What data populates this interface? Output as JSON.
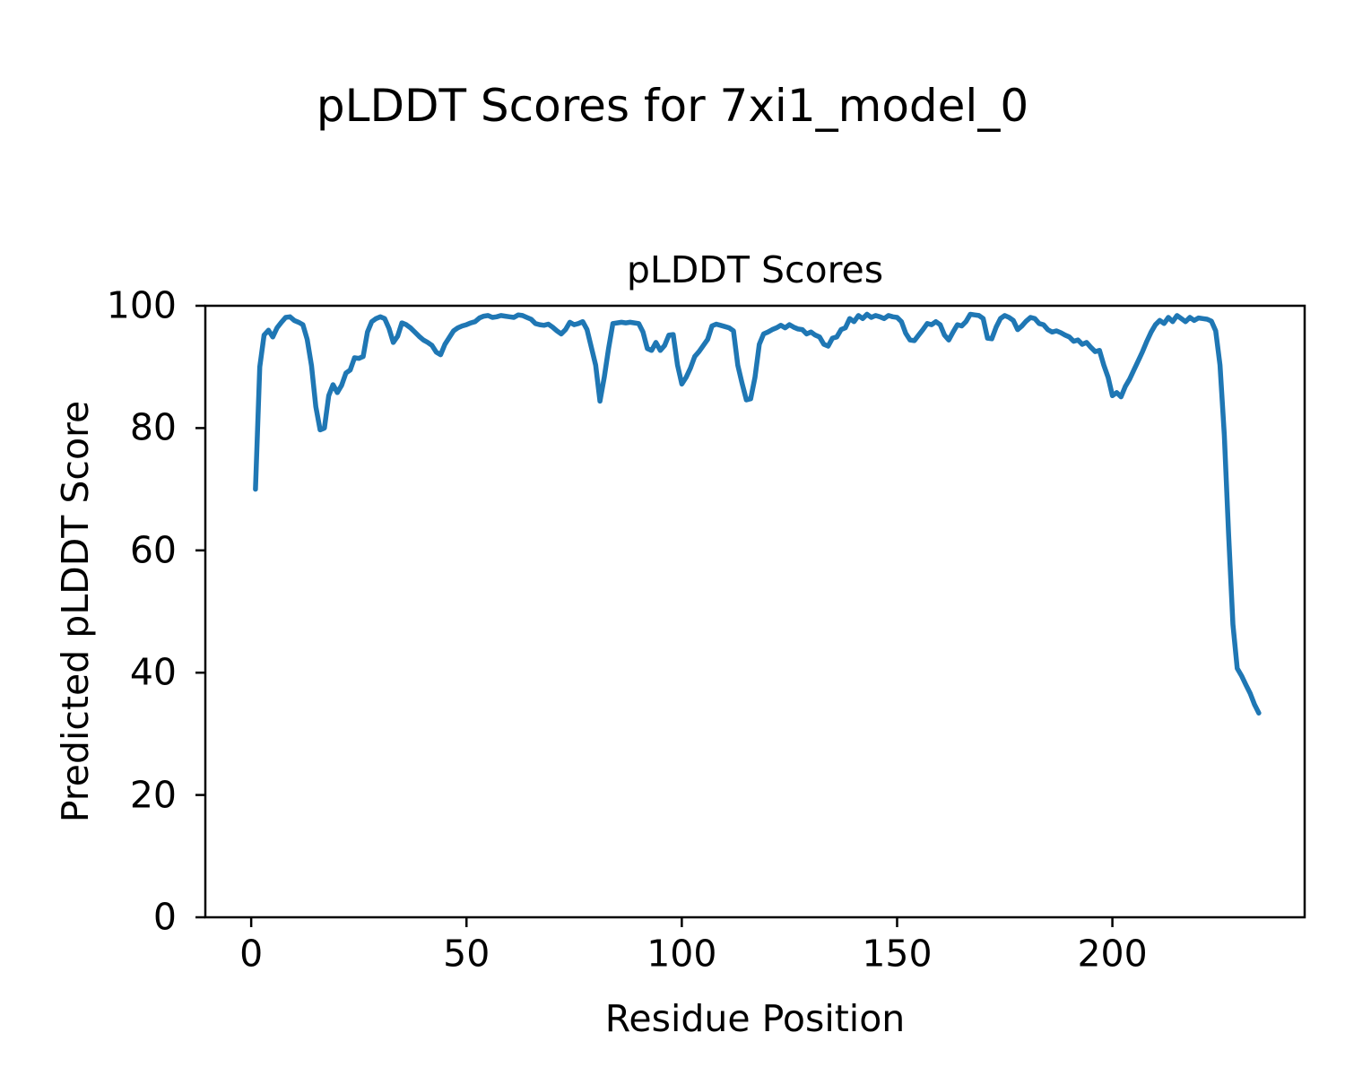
{
  "figure": {
    "background": "#ffffff",
    "text_color": "#000000"
  },
  "chart_data": {
    "type": "line",
    "suptitle": "pLDDT Scores for 7xi1_model_0",
    "title": "pLDDT Scores",
    "xlabel": "Residue Position",
    "ylabel": "Predicted pLDDT Score",
    "xlim": [
      -10.65,
      244.65
    ],
    "ylim": [
      0,
      100
    ],
    "xticks": [
      0,
      50,
      100,
      150,
      200
    ],
    "yticks": [
      0,
      20,
      40,
      60,
      80,
      100
    ],
    "grid": false,
    "legend": false,
    "line_color": "#1f77b4",
    "axis_color": "#000000",
    "series": [
      {
        "name": "pLDDT",
        "x_start": 1,
        "x_step": 1,
        "values": [
          70.0,
          90.0,
          95.2,
          96.0,
          94.9,
          96.4,
          97.3,
          98.1,
          98.2,
          97.6,
          97.3,
          96.9,
          94.5,
          90.2,
          83.5,
          79.7,
          80.0,
          85.3,
          87.1,
          85.8,
          87.0,
          89.0,
          89.5,
          91.5,
          91.4,
          91.7,
          95.7,
          97.4,
          97.9,
          98.2,
          97.9,
          96.3,
          94.0,
          95.0,
          97.2,
          96.9,
          96.4,
          95.7,
          95.0,
          94.4,
          94.0,
          93.5,
          92.4,
          92.0,
          93.7,
          94.8,
          95.9,
          96.4,
          96.7,
          96.9,
          97.2,
          97.4,
          98.0,
          98.3,
          98.4,
          98.1,
          98.2,
          98.4,
          98.3,
          98.2,
          98.1,
          98.5,
          98.4,
          98.1,
          97.8,
          97.1,
          96.9,
          96.8,
          97.0,
          96.5,
          95.9,
          95.4,
          96.1,
          97.3,
          96.9,
          97.1,
          97.4,
          96.1,
          93.2,
          90.3,
          84.4,
          88.3,
          93.0,
          97.1,
          97.2,
          97.3,
          97.2,
          97.3,
          97.2,
          97.1,
          95.7,
          93.0,
          92.7,
          94.0,
          92.7,
          93.5,
          95.2,
          95.3,
          90.3,
          87.2,
          88.3,
          89.8,
          91.7,
          92.5,
          93.5,
          94.5,
          96.7,
          97.0,
          96.8,
          96.6,
          96.4,
          95.9,
          90.3,
          87.3,
          84.6,
          84.8,
          88.3,
          93.7,
          95.4,
          95.7,
          96.1,
          96.4,
          96.8,
          96.4,
          96.9,
          96.5,
          96.2,
          96.1,
          95.4,
          95.7,
          95.2,
          94.9,
          93.7,
          93.4,
          94.7,
          94.9,
          96.1,
          96.4,
          97.9,
          97.4,
          98.4,
          97.9,
          98.6,
          98.1,
          98.4,
          98.2,
          97.9,
          98.4,
          98.2,
          98.1,
          97.4,
          95.5,
          94.4,
          94.3,
          95.2,
          96.1,
          97.1,
          96.9,
          97.4,
          96.9,
          95.2,
          94.4,
          95.7,
          96.9,
          96.7,
          97.4,
          98.6,
          98.5,
          98.4,
          97.9,
          94.7,
          94.6,
          96.5,
          97.9,
          98.4,
          98.1,
          97.6,
          96.1,
          96.7,
          97.5,
          98.1,
          97.9,
          97.1,
          96.9,
          96.1,
          95.7,
          95.9,
          95.6,
          95.2,
          94.9,
          94.2,
          94.4,
          93.7,
          94.0,
          93.2,
          92.5,
          92.7,
          90.3,
          88.3,
          85.3,
          85.8,
          85.1,
          86.8,
          88.0,
          89.5,
          91.0,
          92.5,
          94.2,
          95.7,
          96.9,
          97.6,
          97.1,
          98.1,
          97.4,
          98.4,
          97.9,
          97.4,
          98.1,
          97.6,
          98.0,
          97.9,
          97.8,
          97.5,
          95.9,
          90.3,
          78.9,
          62.6,
          47.9,
          40.7,
          39.5,
          38.0,
          36.6,
          34.8,
          33.4
        ]
      }
    ]
  }
}
